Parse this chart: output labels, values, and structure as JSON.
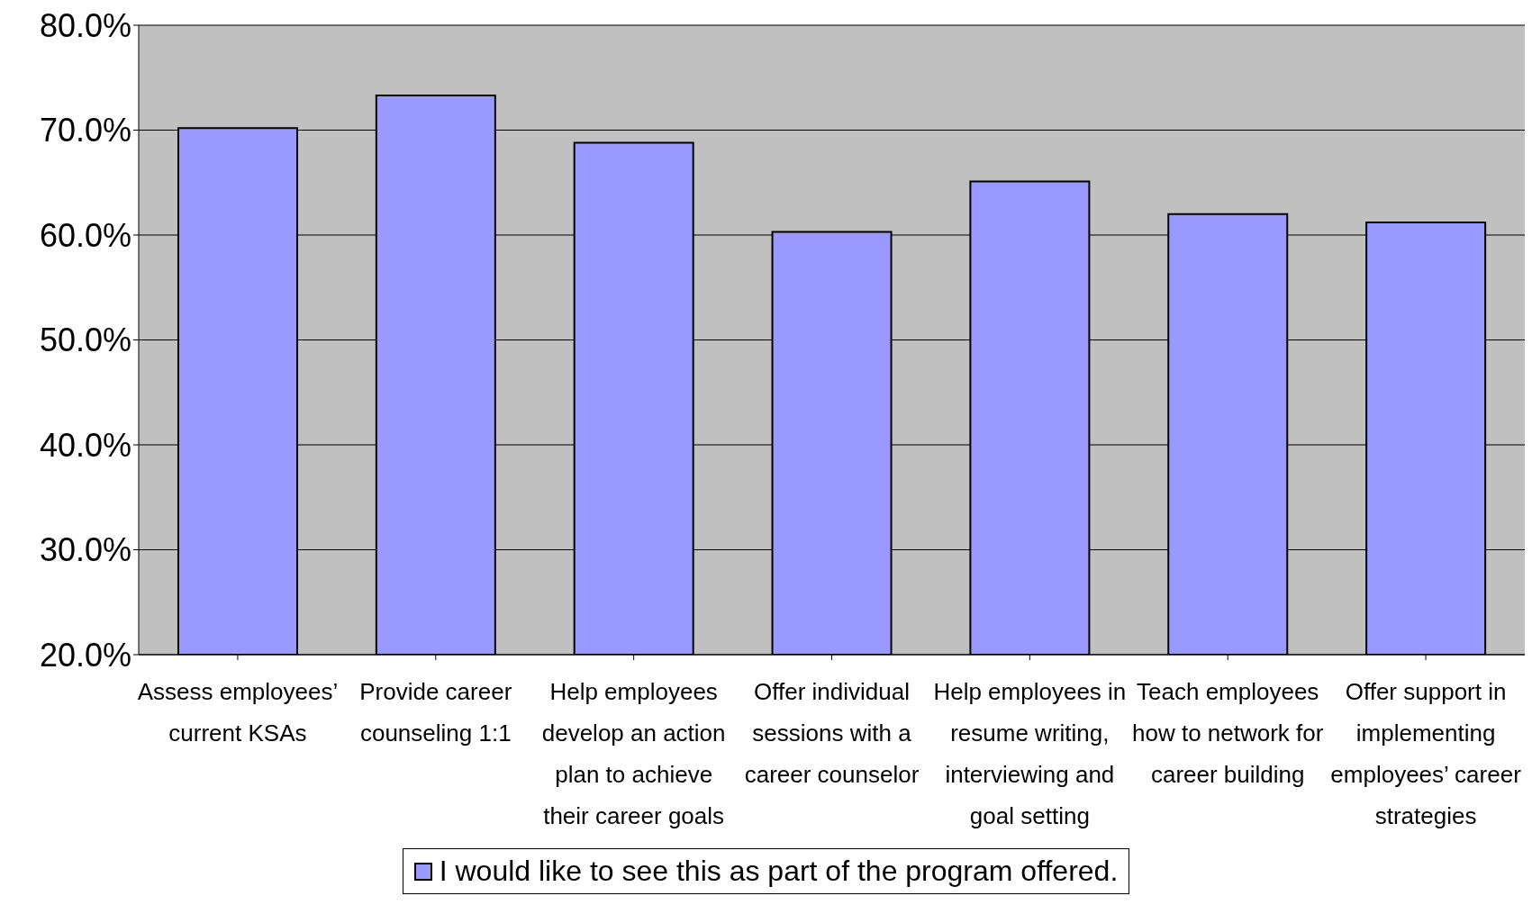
{
  "chart_data": {
    "type": "bar",
    "categories": [
      "Assess employees’ current KSAs",
      "Provide career counseling 1:1",
      "Help employees develop an action plan to achieve their career goals",
      "Offer individual sessions with a career counselor",
      "Help employees in resume writing, interviewing and goal setting",
      "Teach employees how to network for career building",
      "Offer support in implementing employees’ career strategies"
    ],
    "series": [
      {
        "name": "I would like to see this as part of the program offered.",
        "color": "#9999ff",
        "values": [
          70.2,
          73.3,
          68.8,
          60.3,
          65.1,
          62.0,
          61.2
        ]
      }
    ],
    "ylim": [
      20,
      80
    ],
    "yticks": [
      {
        "value": 20,
        "label": "20.0%"
      },
      {
        "value": 30,
        "label": "30.0%"
      },
      {
        "value": 40,
        "label": "40.0%"
      },
      {
        "value": 50,
        "label": "50.0%"
      },
      {
        "value": 60,
        "label": "60.0%"
      },
      {
        "value": 70,
        "label": "70.0%"
      },
      {
        "value": 80,
        "label": "80.0%"
      }
    ],
    "grid": "y",
    "legend": "bottom"
  }
}
